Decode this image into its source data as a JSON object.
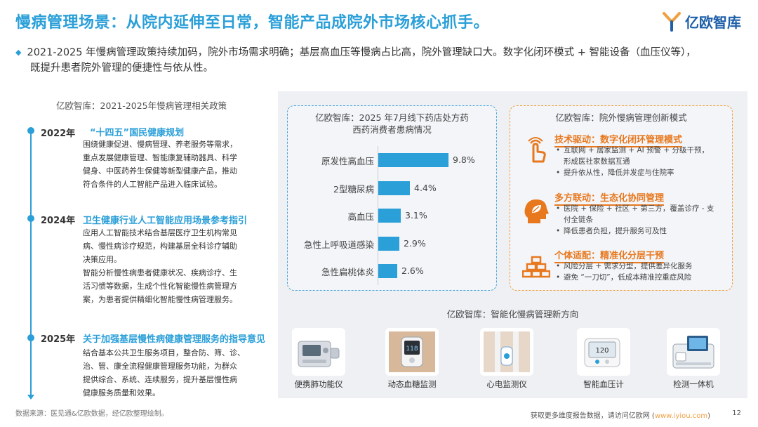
{
  "header": {
    "title": "慢病管理场景：从院内延伸至日常，智能产品成院外市场核心抓手。",
    "logo_text": "亿欧智库"
  },
  "intro": {
    "line1": "2021-2025 年慢病管理政策持续加码，院外市场需求明确；基层高血压等慢病占比高，院外管理缺口大。数字化闭环模式 + 智能设备（血压仪等），",
    "line2": "既提升患者院外管理的便捷性与依从性。"
  },
  "policy": {
    "title": "亿欧智库：2021-2025年慢病管理相关政策",
    "items": [
      {
        "year": "2022年",
        "name": "“十四五”国民健康规划",
        "body": [
          "围绕健康促进、慢病管理、养老服务等需求，",
          "重点发展健康管理、智能康复辅助器具、科学",
          "健身、中医药养生保健等新型健康产品，推动",
          "符合条件的人工智能产品进入临床试验。"
        ]
      },
      {
        "year": "2024年",
        "name": "卫生健康行业人工智能应用场景参考指引",
        "body": [
          "应用人工智能技术结合基层医疗卫生机构常见",
          "病、慢性病诊疗规范，构建基层全科诊疗辅助",
          "决策应用。",
          "智能分析慢性病患者健康状况、疾病诊疗、生",
          "活习惯等数据，生成个性化智能慢性病管理方",
          "案，为患者提供精细化智能慢性病管理服务。"
        ]
      },
      {
        "year": "2025年",
        "name": "关于加强基层慢性病健康管理服务的指导意见",
        "body": [
          "结合基本公共卫生服务项目，整合防、筛、诊、",
          "治、管、康全流程健康管理服务功能，为群众",
          "提供综合、系统、连续服务，提升基层慢性病",
          "健康服务质量和效果。"
        ]
      }
    ]
  },
  "chart_title": [
    "亿欧智库：2025 年7月线下药店处方药",
    "西药消费者患病情况"
  ],
  "chart_data": {
    "type": "bar",
    "orientation": "horizontal",
    "categories": [
      "原发性高血压",
      "2型糖尿病",
      "高血压",
      "急性上呼吸道感染",
      "急性扁桃体炎"
    ],
    "values": [
      9.8,
      4.4,
      3.1,
      2.9,
      2.6
    ],
    "value_labels": [
      "9.8%",
      "4.4%",
      "3.1%",
      "2.9%",
      "2.6%"
    ],
    "unit": "%",
    "color": "#2a9fd8"
  },
  "modes": {
    "title": "亿欧智库：院外慢病管理创新模式",
    "items": [
      {
        "icon": "hand-touch-icon",
        "head": "技术驱动：数字化闭环管理模式",
        "points": [
          {
            "text": "互联网 + 居家监测 + AI 预警 + 分级干预，",
            "cont": false
          },
          {
            "text": "形成医社家数据互通",
            "cont": true
          },
          {
            "text": "提升依从性，降低并发症与住院率",
            "cont": false
          }
        ]
      },
      {
        "icon": "head-leaf-icon",
        "head": "多方联动：生态化协同管理",
        "points": [
          {
            "text": "医院 + 保险 + 社区 + 第三方，覆盖诊疗 - 支",
            "cont": false
          },
          {
            "text": "付全链条",
            "cont": true
          },
          {
            "text": "降低患者负担，提升服务可及性",
            "cont": false
          }
        ]
      },
      {
        "icon": "stacked-blocks-icon",
        "head": "个体适配：精准化分层干预",
        "points": [
          {
            "text": "风险分层 + 需求分型，提供差异化服务",
            "cont": false
          },
          {
            "text": "避免 “一刀切”，低成本精准控重症风险",
            "cont": false
          }
        ]
      }
    ]
  },
  "directions": {
    "title": "亿欧智库：智能化慢病管理新方向",
    "devices": [
      {
        "label": "便携肺功能仪",
        "icon": "spirometer-icon"
      },
      {
        "label": "动态血糖监测",
        "icon": "glucose-monitor-icon"
      },
      {
        "label": "心电监测仪",
        "icon": "ecg-monitor-icon"
      },
      {
        "label": "智能血压计",
        "icon": "blood-pressure-monitor-icon"
      },
      {
        "label": "检测一体机",
        "icon": "testing-kiosk-icon"
      }
    ]
  },
  "footer": {
    "source": "数据来源：医见通&亿欧数据，经亿欧整理绘制。",
    "more_prefix": "获取更多维度报告数据，请访问亿欧网 (",
    "more_link": "www.iyiou.com",
    "more_suffix": ")",
    "page": "12"
  },
  "colors": {
    "accent_blue": "#2a9fd8",
    "accent_orange": "#e8781e"
  }
}
